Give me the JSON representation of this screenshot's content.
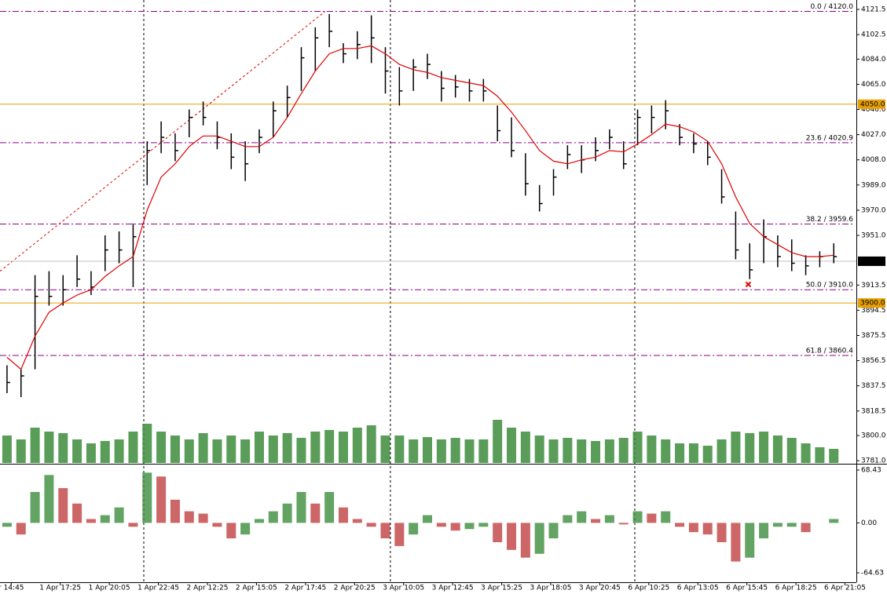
{
  "chart_data": {
    "type": "ohlc",
    "xlim": [
      0,
      61
    ],
    "xticks": [
      {
        "value": 0.8,
        "label": "r 14:45"
      },
      {
        "value": 4.3,
        "label": "1 Apr 17:25"
      },
      {
        "value": 7.8,
        "label": "1 Apr 20:05"
      },
      {
        "value": 11.3,
        "label": "1 Apr 22:45"
      },
      {
        "value": 14.8,
        "label": "2 Apr 12:25"
      },
      {
        "value": 18.3,
        "label": "2 Apr 15:05"
      },
      {
        "value": 21.8,
        "label": "2 Apr 17:45"
      },
      {
        "value": 25.3,
        "label": "2 Apr 20:25"
      },
      {
        "value": 28.8,
        "label": "3 Apr 10:05"
      },
      {
        "value": 32.3,
        "label": "3 Apr 12:45"
      },
      {
        "value": 35.8,
        "label": "3 Apr 15:25"
      },
      {
        "value": 39.3,
        "label": "3 Apr 18:05"
      },
      {
        "value": 42.8,
        "label": "3 Apr 20:45"
      },
      {
        "value": 46.3,
        "label": "6 Apr 10:25"
      },
      {
        "value": 49.8,
        "label": "6 Apr 13:05"
      },
      {
        "value": 53.3,
        "label": "6 Apr 15:45"
      },
      {
        "value": 56.8,
        "label": "6 Apr 18:25"
      },
      {
        "value": 60.3,
        "label": "6 Apr 21:05"
      }
    ],
    "separators": [
      10.26,
      27.86,
      45.3
    ],
    "ylim": [
      3779.3,
      4128.6
    ],
    "yticks": [
      4121.5,
      4102.5,
      {
        "value": 4084,
        "label": "4084.0"
      },
      {
        "value": 4065,
        "label": "4065.0"
      },
      {
        "value": 4046,
        "label": "4046.0"
      },
      {
        "value": 4027,
        "label": "4027.0"
      },
      {
        "value": 4008,
        "label": "4008.0"
      },
      {
        "value": 3989,
        "label": "3989.0"
      },
      {
        "value": 3970,
        "label": "3970.0"
      },
      {
        "value": 3951,
        "label": "3951.0"
      },
      3913.5,
      3894.5,
      3875.5,
      3856.5,
      3837.5,
      3818.5,
      {
        "value": 3800,
        "label": "3800.0"
      },
      {
        "value": 3781,
        "label": "3781.0"
      }
    ],
    "bar_color": "#000000",
    "high": [
      3853,
      3850,
      3921,
      3924,
      3921,
      3936,
      3924,
      3951,
      3954,
      3960,
      4022,
      4037,
      4028,
      4046,
      4052,
      4037,
      4028,
      4022,
      4031,
      4052,
      4064,
      4093,
      4108,
      4118,
      4096,
      4105,
      4117,
      4093,
      4078,
      4084,
      4088,
      4075,
      4072,
      4069,
      4069,
      4049,
      4040,
      4013,
      3989,
      4001,
      4019,
      4019,
      4025,
      4031,
      4022,
      4046,
      4049,
      4053,
      4035,
      4028,
      4022,
      4001,
      3969,
      3945,
      3963,
      3951,
      3948,
      3936,
      3939,
      3945
    ],
    "low": [
      3832,
      3829,
      3850,
      3898,
      3898,
      3912,
      3906,
      3924,
      3930,
      3912,
      3989,
      4013,
      4007,
      4025,
      4034,
      4016,
      4001,
      3992,
      4013,
      4025,
      4040,
      4060,
      4075,
      4093,
      4081,
      4084,
      4081,
      4058,
      4049,
      4060,
      4069,
      4052,
      4055,
      4052,
      4052,
      4022,
      4010,
      3981,
      3969,
      3981,
      4001,
      3998,
      4007,
      4016,
      4001,
      4019,
      4028,
      4031,
      4019,
      4013,
      4004,
      3975,
      3933,
      3918,
      3930,
      3927,
      3924,
      3921,
      3927,
      3930
    ],
    "close": [
      3840,
      3845,
      3905,
      3905,
      3910,
      3918,
      3912,
      3940,
      3940,
      3950,
      4015,
      4025,
      4015,
      4040,
      4040,
      4025,
      4010,
      4005,
      4025,
      4045,
      4055,
      4085,
      4100,
      4105,
      4088,
      4095,
      4100,
      4075,
      4060,
      4078,
      4080,
      4062,
      4063,
      4060,
      4060,
      4030,
      4015,
      3990,
      3975,
      3995,
      4012,
      4008,
      4015,
      4025,
      4005,
      4040,
      4040,
      4045,
      4025,
      4020,
      4010,
      3980,
      3940,
      3925,
      3950,
      3935,
      3930,
      3928,
      3935,
      3935
    ],
    "ma": {
      "color": "#e00000",
      "values": [
        3859,
        3850,
        3875,
        3893,
        3900,
        3906,
        3910,
        3920,
        3928,
        3935,
        3970,
        3995,
        4005,
        4018,
        4026,
        4026,
        4022,
        4018,
        4018,
        4025,
        4040,
        4058,
        4075,
        4088,
        4092,
        4092,
        4094,
        4088,
        4080,
        4076,
        4074,
        4070,
        4068,
        4066,
        4064,
        4056,
        4044,
        4030,
        4015,
        4007,
        4005,
        4008,
        4010,
        4015,
        4014,
        4020,
        4027,
        4035,
        4033,
        4029,
        4022,
        4005,
        3980,
        3960,
        3950,
        3944,
        3938,
        3935,
        3935,
        3936
      ]
    },
    "volume": {
      "color": "#3c8c3c",
      "ylim": [
        0,
        100
      ],
      "values": [
        35,
        30,
        45,
        40,
        38,
        30,
        25,
        28,
        30,
        40,
        50,
        40,
        35,
        30,
        38,
        30,
        35,
        30,
        40,
        35,
        38,
        32,
        40,
        42,
        40,
        45,
        48,
        35,
        35,
        30,
        33,
        30,
        32,
        30,
        30,
        55,
        45,
        40,
        35,
        30,
        32,
        30,
        28,
        30,
        32,
        40,
        35,
        30,
        25,
        25,
        22,
        30,
        40,
        38,
        40,
        35,
        32,
        25,
        20,
        18
      ]
    },
    "fib_color": "#8b008b",
    "fib_levels": [
      {
        "value": 4120,
        "label": "0.0 / 4120.0"
      },
      {
        "value": 4020.9,
        "label": "23.6 / 4020.9"
      },
      {
        "value": 3959.6,
        "label": "38.2 / 3959.6"
      },
      {
        "value": 3910,
        "label": "50.0 / 3910.0"
      },
      {
        "value": 3860.4,
        "label": "61.8 / 3860.4"
      }
    ],
    "trendline": {
      "x": [
        0,
        23.2
      ],
      "y": [
        3924,
        4120
      ],
      "color": "#e00000"
    },
    "hlines_color": "#e8a000",
    "hlines": [
      {
        "value": 4050,
        "label": "4050.0"
      },
      {
        "value": 3900,
        "label": "3900.0"
      }
    ],
    "last_price": 3931.5,
    "marker": {
      "x": 53.4,
      "y": 3914,
      "color": "#e00000"
    },
    "oscillator": {
      "ylim": [
        -76.8,
        74.5
      ],
      "yticks": [
        68.43,
        {
          "value": 0,
          "label": "0.00"
        },
        -64.63
      ],
      "up_color": "#3c8c3c",
      "down_color": "#c04040",
      "values": [
        -5,
        -15,
        40,
        62,
        45,
        25,
        5,
        10,
        20,
        -5,
        65,
        60,
        30,
        15,
        12,
        -5,
        -20,
        -15,
        5,
        15,
        25,
        40,
        25,
        40,
        20,
        5,
        -5,
        -20,
        -30,
        -15,
        10,
        -5,
        -10,
        -8,
        -5,
        -25,
        -35,
        -45,
        -40,
        -20,
        10,
        15,
        5,
        10,
        -2,
        15,
        12,
        15,
        -5,
        -12,
        -15,
        -25,
        -50,
        -45,
        -20,
        -5,
        -5,
        -12,
        0,
        5
      ]
    }
  }
}
